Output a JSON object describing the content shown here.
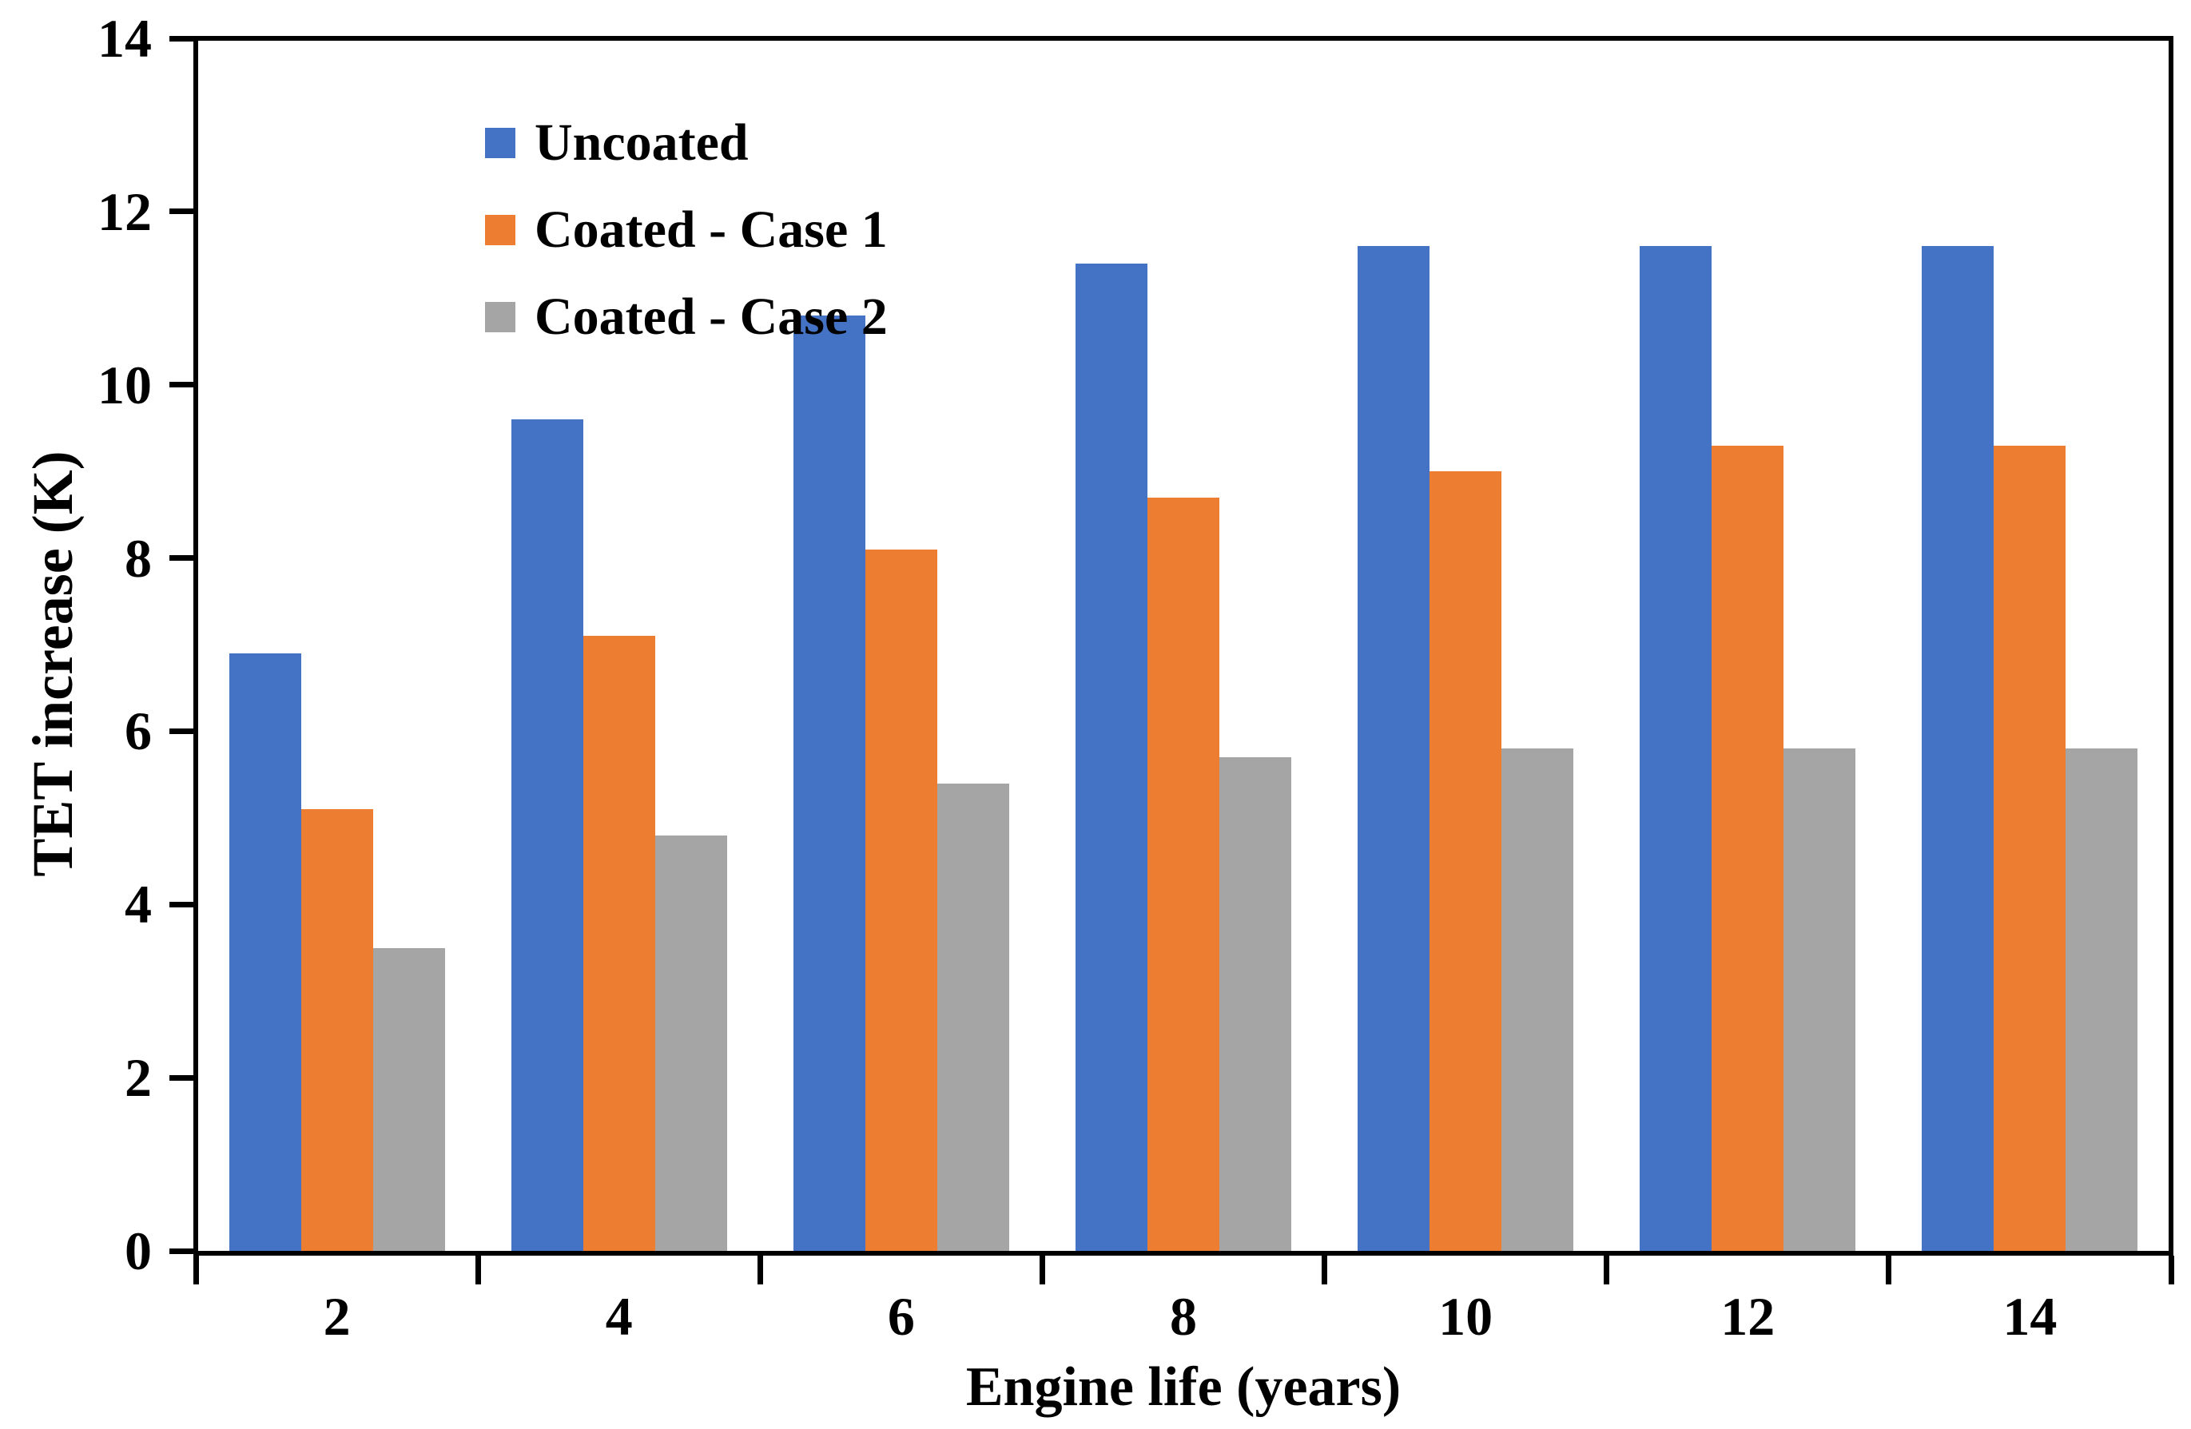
{
  "chart_data": {
    "type": "bar",
    "title": "",
    "xlabel": "Engine life (years)",
    "ylabel": "TET increase (K)",
    "categories": [
      "2",
      "4",
      "6",
      "8",
      "10",
      "12",
      "14"
    ],
    "series": [
      {
        "name": "Uncoated",
        "color": "#4472C4",
        "values": [
          6.9,
          9.6,
          10.8,
          11.4,
          11.6,
          11.6,
          11.6
        ]
      },
      {
        "name": "Coated - Case 1",
        "color": "#ED7D31",
        "values": [
          5.1,
          7.1,
          8.1,
          8.7,
          9.0,
          9.3,
          9.3
        ]
      },
      {
        "name": "Coated - Case 2",
        "color": "#A5A5A5",
        "values": [
          3.5,
          4.8,
          5.4,
          5.7,
          5.8,
          5.8,
          5.8
        ]
      }
    ],
    "ylim": [
      0,
      14
    ],
    "yticks": [
      0,
      2,
      4,
      6,
      8,
      10,
      12,
      14
    ],
    "grid": false,
    "legend_position": "top-left-inside",
    "axis_color": "#000000",
    "background_color": "#FFFFFF"
  }
}
